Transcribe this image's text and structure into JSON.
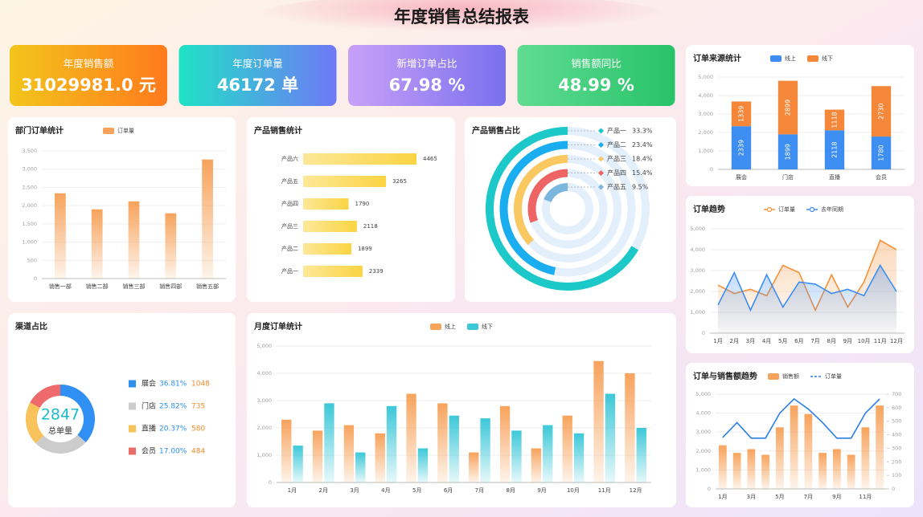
{
  "title": "年度销售总结报表",
  "kpis": [
    {
      "label": "年度销售额",
      "value": "31029981.0 元"
    },
    {
      "label": "年度订单量",
      "value": "46172 单"
    },
    {
      "label": "新增订单占比",
      "value": "67.98 %"
    },
    {
      "label": "销售额同比",
      "value": "48.99 %"
    }
  ],
  "chart_data": [
    {
      "type": "bar",
      "title": "部门订单统计",
      "categories": [
        "销售一部",
        "销售二部",
        "销售三部",
        "销售四部",
        "销售五部"
      ],
      "series": [
        {
          "name": "订单量",
          "color": "#f7a35c",
          "values": [
            2339,
            1899,
            2118,
            1790,
            3265
          ]
        }
      ],
      "ylim": [
        0,
        3500
      ],
      "yticks": [
        0,
        500,
        {
          "value": 1000,
          "label": "1,000"
        },
        {
          "value": 1500,
          "label": "1,500"
        },
        {
          "value": 2000,
          "label": "2,000"
        },
        {
          "value": 2500,
          "label": "2,500"
        },
        {
          "value": 3000,
          "label": "3,000"
        },
        {
          "value": 3500,
          "label": "3,500"
        }
      ],
      "grid": true
    },
    {
      "type": "hbar",
      "title": "产品销售统计",
      "categories": [
        "产品六",
        "产品五",
        "产品四",
        "产品三",
        "产品二",
        "产品一"
      ],
      "values": [
        4465,
        3265,
        1790,
        2118,
        1899,
        2339
      ],
      "color": "#fbd443"
    },
    {
      "type": "radial_bar",
      "title": "产品销售占比",
      "categories": [
        "产品一",
        "产品二",
        "产品三",
        "产品四",
        "产品五"
      ],
      "values": [
        33.3,
        23.4,
        18.4,
        15.4,
        9.5
      ],
      "value_labels": [
        "33.3%",
        "23.4%",
        "18.4%",
        "15.4%",
        "9.5%"
      ],
      "colors": [
        "#1cc8c8",
        "#1aaef0",
        "#f9c860",
        "#ee6464",
        "#7ab6de"
      ]
    },
    {
      "type": "stacked_bar",
      "title": "订单来源统计",
      "categories": [
        "展会",
        "门店",
        "直播",
        "会员"
      ],
      "series": [
        {
          "name": "线上",
          "color": "#3d8ef0",
          "values": [
            2339,
            1899,
            2118,
            1780
          ]
        },
        {
          "name": "线下",
          "color": "#f5873a",
          "values": [
            1339,
            2899,
            1118,
            2730
          ]
        }
      ],
      "ylim": [
        0,
        5000
      ],
      "yticks": [
        0,
        {
          "value": 1000,
          "label": "1,000"
        },
        {
          "value": 2000,
          "label": "2,000"
        },
        {
          "value": 3000,
          "label": "3,000"
        },
        {
          "value": 4000,
          "label": "4,000"
        },
        {
          "value": 5000,
          "label": "5,000"
        }
      ],
      "grid": true
    },
    {
      "type": "line",
      "title": "订单趋势",
      "categories": [
        "1月",
        "2月",
        "3月",
        "4月",
        "5月",
        "6月",
        "7月",
        "8月",
        "9月",
        "10月",
        "11月",
        "12月"
      ],
      "series": [
        {
          "name": "订单量",
          "color": "#f5923a",
          "values": [
            2300,
            1900,
            2100,
            1800,
            3250,
            2900,
            1100,
            2800,
            1250,
            2450,
            4450,
            4000
          ]
        },
        {
          "name": "去年同期",
          "color": "#3d8ef0",
          "values": [
            1350,
            2900,
            1100,
            2800,
            1250,
            2450,
            2350,
            1900,
            2100,
            1800,
            3250,
            2000
          ]
        }
      ],
      "ylim": [
        0,
        5000
      ],
      "yticks": [
        0,
        {
          "value": 1000,
          "label": "1,000"
        },
        {
          "value": 2000,
          "label": "2,000"
        },
        {
          "value": 3000,
          "label": "3,000"
        },
        {
          "value": 4000,
          "label": "4,000"
        },
        {
          "value": 5000,
          "label": "5,000"
        }
      ],
      "grid": true,
      "area": true
    },
    {
      "type": "donut",
      "title": "渠道占比",
      "categories": [
        "展会",
        "门店",
        "直播",
        "会员"
      ],
      "values": [
        1048,
        735,
        580,
        484
      ],
      "share_labels": [
        "36.81%",
        "25.82%",
        "20.37%",
        "17.00%"
      ],
      "colors": [
        "#2f8ff2",
        "#cccccc",
        "#f9c35c",
        "#ef6b6b"
      ],
      "center_value": 2847,
      "center_label": "总单量"
    },
    {
      "type": "grouped_bar",
      "title": "月度订单统计",
      "categories": [
        "1月",
        "2月",
        "3月",
        "4月",
        "5月",
        "6月",
        "7月",
        "8月",
        "9月",
        "10月",
        "11月",
        "12月"
      ],
      "series": [
        {
          "name": "线上",
          "color": "#f7a35c",
          "values": [
            2300,
            1900,
            2100,
            1800,
            3250,
            2900,
            1100,
            2800,
            1250,
            2450,
            4450,
            4000
          ]
        },
        {
          "name": "线下",
          "color": "#3cc8d8",
          "values": [
            1350,
            2900,
            1100,
            2800,
            1250,
            2450,
            2350,
            1900,
            2100,
            1800,
            3250,
            2000
          ]
        }
      ],
      "ylim": [
        0,
        5000
      ],
      "yticks": [
        0,
        {
          "value": 1000,
          "label": "1,000"
        },
        {
          "value": 2000,
          "label": "2,000"
        },
        {
          "value": 3000,
          "label": "3,000"
        },
        {
          "value": 4000,
          "label": "4,000"
        },
        {
          "value": 5000,
          "label": "5,000"
        }
      ],
      "grid": true
    },
    {
      "type": "combo",
      "title": "订单与销售额趋势",
      "categories": [
        "1月",
        null,
        "3月",
        null,
        "5月",
        null,
        "7月",
        null,
        "9月",
        null,
        "11月",
        null
      ],
      "series": [
        {
          "name": "销售额",
          "color": "#f7a35c",
          "kind": "bar",
          "values": [
            2300,
            1900,
            2100,
            1800,
            3250,
            4400,
            3950,
            1900,
            2100,
            1800,
            3250,
            4400
          ]
        },
        {
          "name": "订单量",
          "color": "#2b7fe8",
          "kind": "line",
          "axis": "y2",
          "values": [
            380,
            490,
            375,
            375,
            560,
            665,
            590,
            490,
            375,
            375,
            560,
            665
          ]
        }
      ],
      "ylim": [
        0,
        5000
      ],
      "yticks": [
        0,
        {
          "value": 1000,
          "label": "1,000"
        },
        {
          "value": 2000,
          "label": "2,000"
        },
        {
          "value": 3000,
          "label": "3,000"
        },
        {
          "value": 4000,
          "label": "4,000"
        },
        {
          "value": 5000,
          "label": "5,000"
        }
      ],
      "y2lim": [
        0,
        700
      ],
      "y2ticks": [
        0,
        100,
        200,
        300,
        400,
        500,
        600,
        700
      ],
      "grid": true
    }
  ]
}
